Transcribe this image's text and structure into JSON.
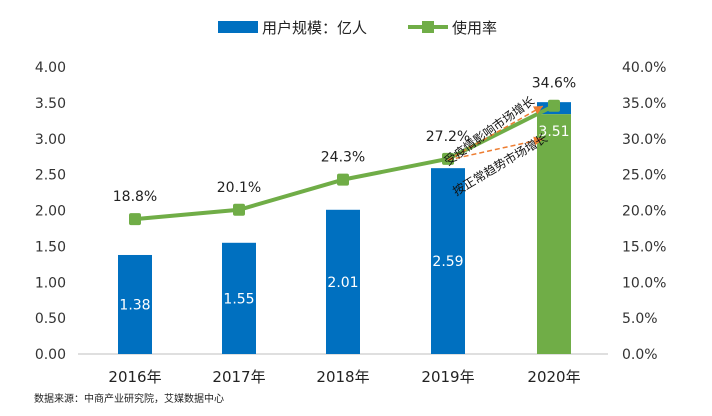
{
  "chart_data": {
    "type": "bar+line",
    "categories": [
      "2016年",
      "2017年",
      "2018年",
      "2019年",
      "2020年"
    ],
    "series": [
      {
        "name": "用户规模：亿人",
        "type": "bar",
        "axis": "left",
        "values": [
          1.38,
          1.55,
          2.01,
          2.59,
          3.51
        ],
        "labels": [
          "1.38",
          "1.55",
          "2.01",
          "2.59",
          "3.51"
        ]
      },
      {
        "name": "使用率",
        "type": "line",
        "axis": "right",
        "values": [
          18.8,
          20.1,
          24.3,
          27.2,
          34.6
        ],
        "labels": [
          "18.8%",
          "20.1%",
          "24.3%",
          "27.2%",
          "34.6%"
        ]
      }
    ],
    "ylim_left": [
      0,
      4
    ],
    "left_ticks": [
      "0.00",
      "0.50",
      "1.00",
      "1.50",
      "2.00",
      "2.50",
      "3.00",
      "3.50",
      "4.00"
    ],
    "ylim_right": [
      0,
      40
    ],
    "right_ticks": [
      "0.0%",
      "5.0%",
      "10.0%",
      "15.0%",
      "20.0%",
      "25.0%",
      "30.0%",
      "35.0%",
      "40.0%"
    ],
    "annotations": [
      "受疫情影响市场增长",
      "按正常趋势市场增长"
    ],
    "source": "数据来源：中商产业研究院，艾媒数据中心",
    "legend_position": "top-center",
    "colors": {
      "bar": "#0070C0",
      "bar_highlight": "#70AD47",
      "line": "#70AD47",
      "marker": "#70AD47",
      "arrow": "#ED7D31",
      "axis": "#BFBFBF"
    }
  }
}
